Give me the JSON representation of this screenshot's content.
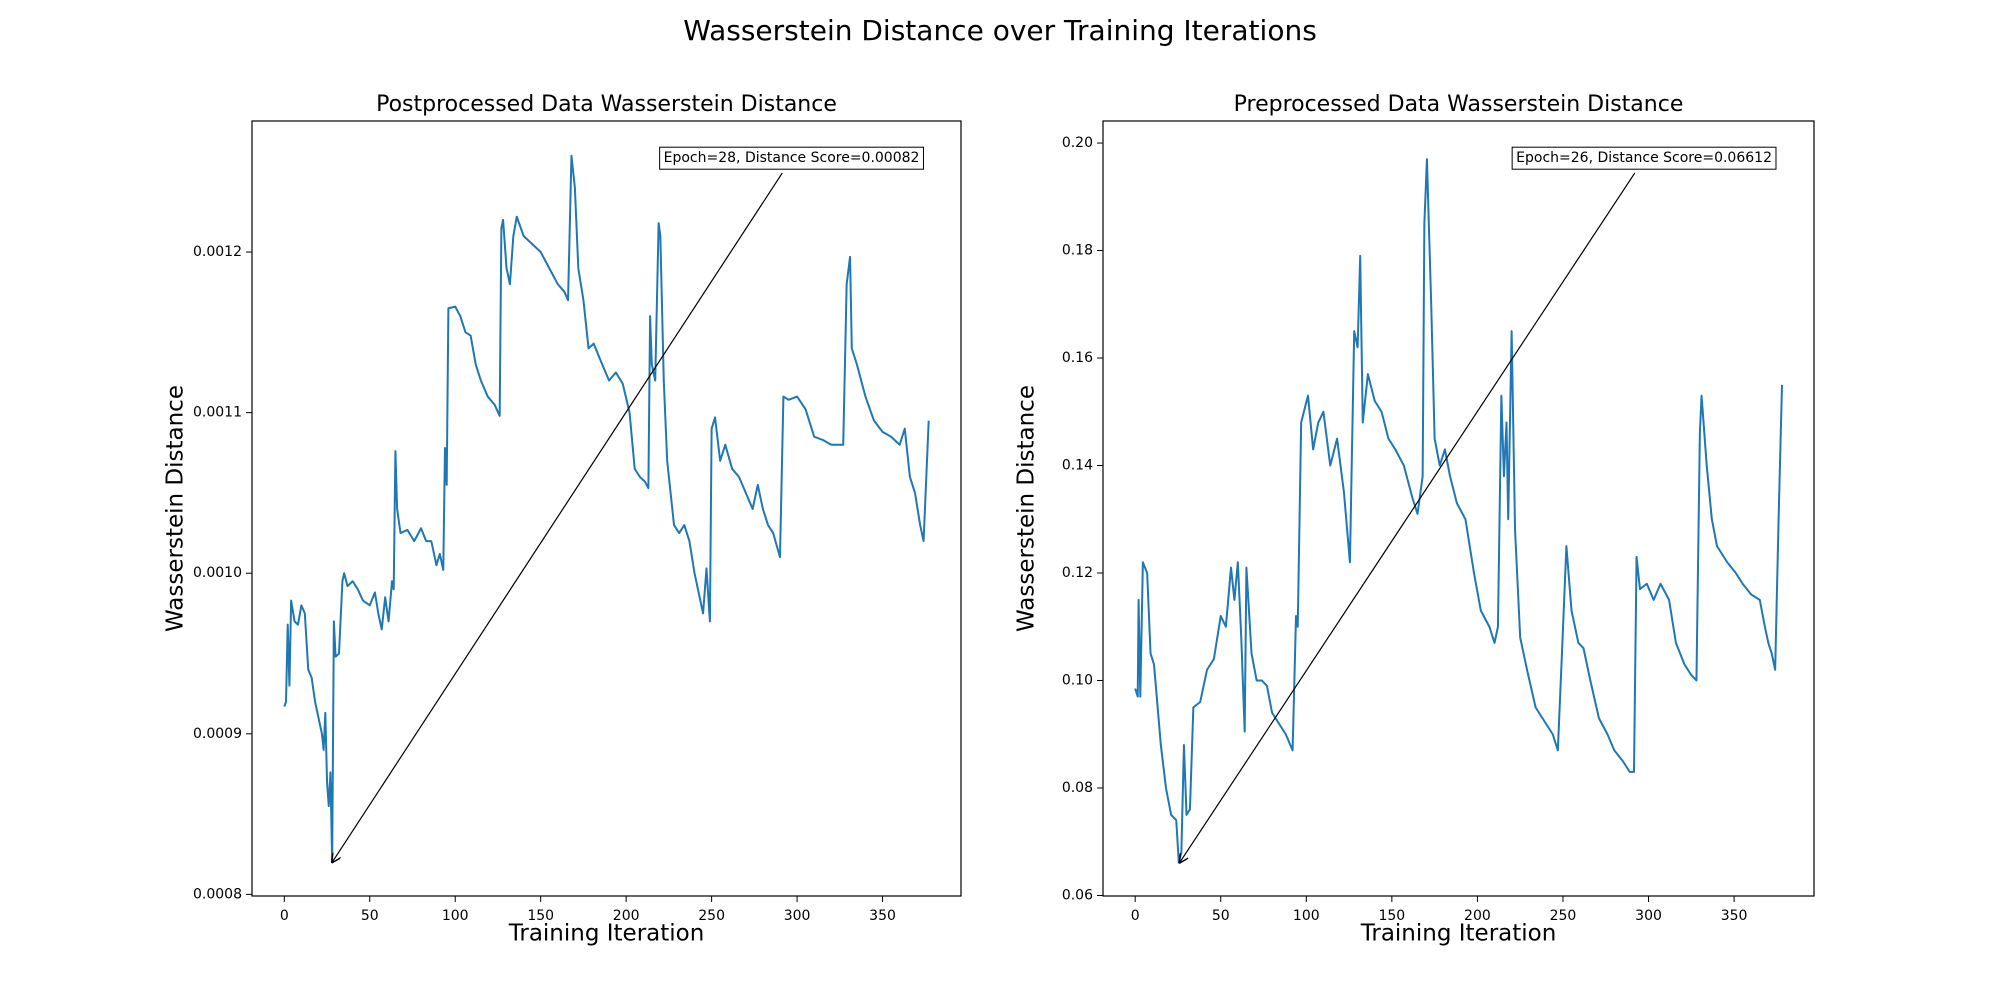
{
  "title": "Wasserstein Distance over Training Iterations",
  "chart_data": [
    {
      "type": "line",
      "title": "Postprocessed Data Wasserstein Distance",
      "x_label": "Training Iteration",
      "y_label": "Wasserstein Distance",
      "color": "#1f77b4",
      "xlim": [
        -18.9,
        395.9
      ],
      "xticks": [
        0,
        50,
        100,
        150,
        200,
        250,
        300,
        350
      ],
      "ylim": [
        0.000799,
        0.0012816
      ],
      "yticks": [
        0.0008,
        0.0009,
        {
          "value": 0.001,
          "label": "0.0010"
        },
        0.0011,
        0.0012
      ],
      "annotation": {
        "text": "Epoch=28, Distance Score=0.00082",
        "x": 28,
        "y": 0.00082
      },
      "x": [
        0,
        1,
        2,
        3,
        4,
        6,
        8,
        10,
        12,
        14,
        16,
        18,
        20,
        22,
        23,
        24,
        25,
        26,
        27,
        28,
        29,
        30,
        32,
        34,
        35,
        37,
        40,
        43,
        46,
        50,
        53,
        55,
        57,
        59,
        61,
        63,
        64,
        65,
        66,
        68,
        72,
        76,
        80,
        83,
        86,
        89,
        91,
        93,
        94,
        95,
        96,
        100,
        103,
        106,
        109,
        112,
        115,
        119,
        123,
        126,
        127,
        128,
        130,
        132,
        134,
        136,
        140,
        145,
        150,
        155,
        160,
        164,
        166,
        168,
        170,
        172,
        175,
        178,
        181,
        186,
        190,
        194,
        198,
        202,
        205,
        208,
        211,
        213,
        214,
        215,
        217,
        219,
        220,
        222,
        224,
        228,
        231,
        234,
        237,
        240,
        243,
        245,
        247,
        249,
        250,
        252,
        255,
        258,
        262,
        266,
        270,
        274,
        277,
        280,
        283,
        286,
        290,
        292,
        295,
        300,
        305,
        310,
        315,
        320,
        327,
        329,
        331,
        332,
        335,
        340,
        345,
        350,
        355,
        360,
        363,
        366,
        369,
        372,
        374,
        377
      ],
      "values": [
        0.000917,
        0.00092,
        0.000968,
        0.00093,
        0.000983,
        0.00097,
        0.000968,
        0.00098,
        0.000975,
        0.00094,
        0.000935,
        0.00092,
        0.00091,
        0.0009,
        0.00089,
        0.000913,
        0.00087,
        0.000855,
        0.000876,
        0.00082,
        0.00097,
        0.000948,
        0.00095,
        0.000995,
        0.001,
        0.000992,
        0.000995,
        0.00099,
        0.000983,
        0.00098,
        0.000988,
        0.000975,
        0.000965,
        0.000985,
        0.00097,
        0.000995,
        0.00099,
        0.001076,
        0.00104,
        0.001025,
        0.001027,
        0.00102,
        0.001028,
        0.00102,
        0.00102,
        0.001005,
        0.001012,
        0.001002,
        0.001078,
        0.001055,
        0.001165,
        0.001166,
        0.00116,
        0.00115,
        0.001148,
        0.00113,
        0.00112,
        0.00111,
        0.001105,
        0.001098,
        0.001215,
        0.00122,
        0.00119,
        0.00118,
        0.00121,
        0.001222,
        0.00121,
        0.001205,
        0.0012,
        0.00119,
        0.00118,
        0.001175,
        0.00117,
        0.00126,
        0.00124,
        0.00119,
        0.00117,
        0.00114,
        0.001143,
        0.00113,
        0.00112,
        0.001125,
        0.001118,
        0.0011,
        0.001065,
        0.00106,
        0.001057,
        0.001053,
        0.00116,
        0.00113,
        0.00112,
        0.001218,
        0.00121,
        0.00112,
        0.00107,
        0.00103,
        0.001025,
        0.00103,
        0.00102,
        0.001,
        0.000985,
        0.000975,
        0.001003,
        0.00097,
        0.00109,
        0.001097,
        0.00107,
        0.00108,
        0.001065,
        0.00106,
        0.00105,
        0.00104,
        0.001055,
        0.00104,
        0.00103,
        0.001025,
        0.00101,
        0.00111,
        0.001108,
        0.00111,
        0.001102,
        0.001085,
        0.001083,
        0.00108,
        0.00108,
        0.00118,
        0.001197,
        0.00114,
        0.00113,
        0.00111,
        0.001095,
        0.001088,
        0.001085,
        0.00108,
        0.00109,
        0.00106,
        0.00105,
        0.00103,
        0.00102,
        0.001095
      ]
    },
    {
      "type": "line",
      "title": "Preprocessed Data Wasserstein Distance",
      "x_label": "Training Iteration",
      "y_label": "Wasserstein Distance",
      "color": "#1f77b4",
      "xlim": [
        -18.8,
        396.7
      ],
      "xticks": [
        0,
        50,
        100,
        150,
        200,
        250,
        300,
        350
      ],
      "ylim": [
        0.0599,
        0.2041
      ],
      "yticks": [
        0.06,
        0.08,
        {
          "value": 0.1,
          "label": "0.10"
        },
        0.12,
        0.14,
        0.16,
        0.18,
        {
          "value": 0.2,
          "label": "0.20"
        }
      ],
      "annotation": {
        "text": "Epoch=26, Distance Score=0.06612",
        "x": 26,
        "y": 0.06612
      },
      "x": [
        0,
        1.5,
        2,
        3,
        4.5,
        7,
        9,
        11,
        15,
        18,
        21,
        24,
        25.5,
        27,
        28.5,
        30,
        32,
        34,
        38,
        42,
        46,
        50,
        53,
        56,
        58,
        60,
        62,
        64,
        65,
        68,
        71,
        74,
        77,
        80,
        84,
        88,
        92,
        94,
        95,
        97,
        101,
        104,
        107,
        110,
        114,
        118,
        122,
        125.5,
        128,
        130,
        131.5,
        133,
        136,
        140,
        144,
        148,
        152,
        157,
        162,
        165,
        168,
        169,
        170.5,
        173,
        175,
        178,
        181,
        184,
        188,
        193,
        198,
        202,
        207,
        210,
        212,
        214,
        215.5,
        217,
        218,
        220,
        222,
        225,
        229,
        234,
        240,
        244,
        247,
        249,
        252,
        255,
        259,
        262,
        266,
        271,
        276,
        280,
        285,
        289,
        291.5,
        293,
        295,
        299,
        303,
        307,
        312,
        316,
        321,
        325,
        328,
        330,
        331,
        334,
        337,
        340,
        346,
        351,
        355,
        360,
        365,
        368,
        370,
        372,
        374,
        376,
        378
      ],
      "values": [
        0.0985,
        0.097,
        0.115,
        0.097,
        0.122,
        0.12,
        0.105,
        0.103,
        0.088,
        0.08,
        0.075,
        0.074,
        0.0661,
        0.068,
        0.088,
        0.075,
        0.076,
        0.095,
        0.096,
        0.102,
        0.104,
        0.112,
        0.11,
        0.121,
        0.115,
        0.122,
        0.108,
        0.0905,
        0.121,
        0.105,
        0.1,
        0.1,
        0.099,
        0.094,
        0.092,
        0.09,
        0.087,
        0.112,
        0.11,
        0.148,
        0.153,
        0.143,
        0.148,
        0.15,
        0.14,
        0.145,
        0.135,
        0.122,
        0.165,
        0.162,
        0.179,
        0.148,
        0.157,
        0.152,
        0.15,
        0.145,
        0.143,
        0.14,
        0.134,
        0.131,
        0.138,
        0.185,
        0.197,
        0.17,
        0.145,
        0.14,
        0.143,
        0.138,
        0.133,
        0.13,
        0.12,
        0.113,
        0.11,
        0.107,
        0.11,
        0.153,
        0.138,
        0.148,
        0.13,
        0.165,
        0.128,
        0.108,
        0.102,
        0.095,
        0.092,
        0.09,
        0.087,
        0.102,
        0.125,
        0.113,
        0.107,
        0.106,
        0.1,
        0.093,
        0.09,
        0.087,
        0.085,
        0.083,
        0.083,
        0.123,
        0.117,
        0.118,
        0.115,
        0.118,
        0.115,
        0.107,
        0.103,
        0.101,
        0.1,
        0.146,
        0.153,
        0.14,
        0.13,
        0.125,
        0.122,
        0.12,
        0.118,
        0.116,
        0.115,
        0.11,
        0.107,
        0.105,
        0.102,
        0.13,
        0.155
      ]
    }
  ]
}
